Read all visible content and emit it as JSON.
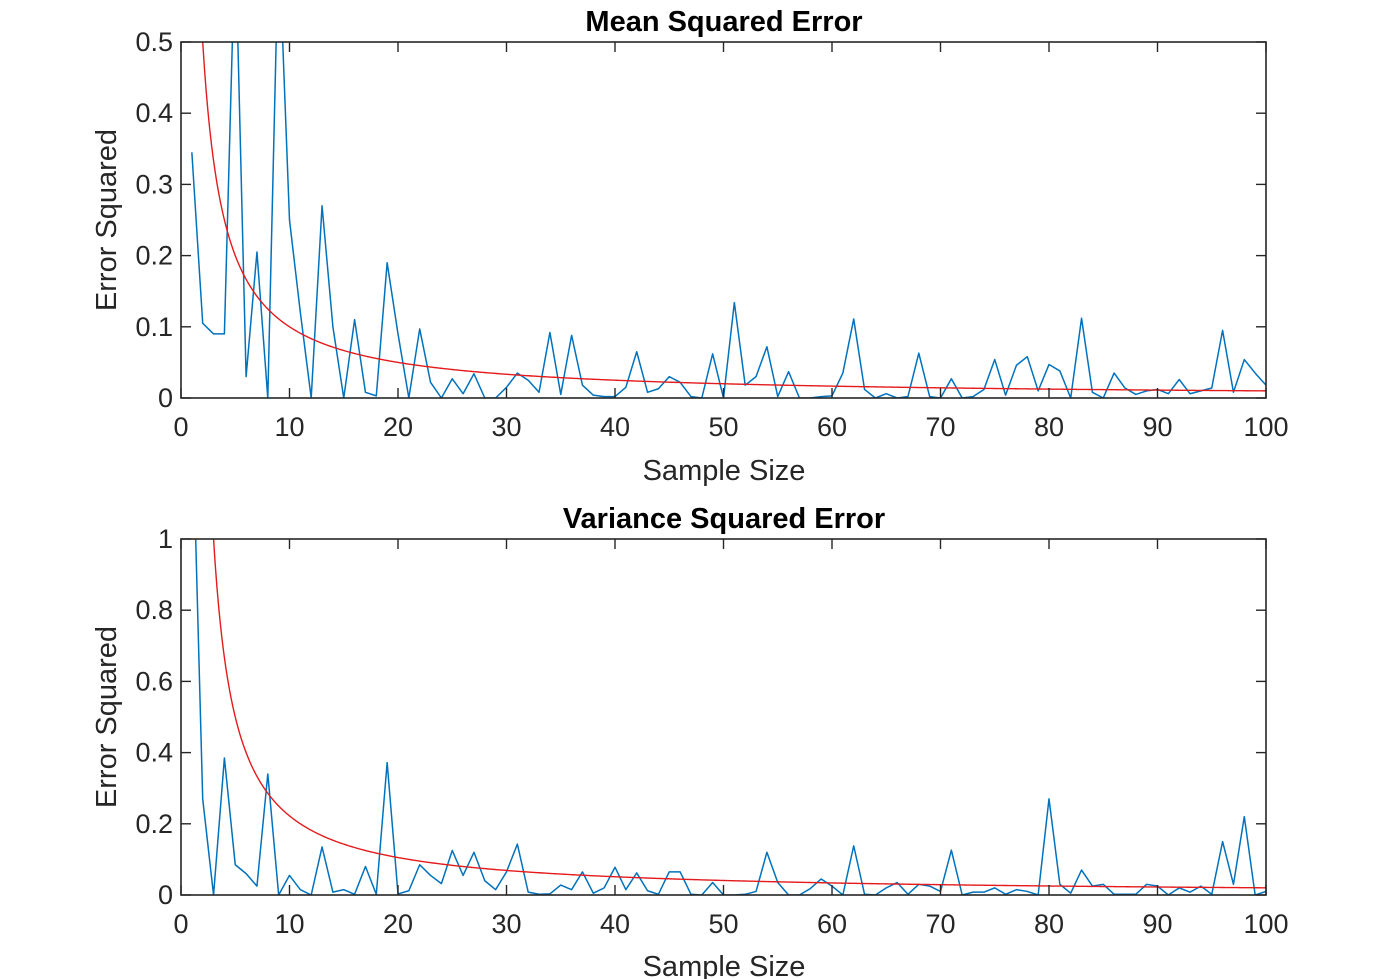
{
  "chart_data": [
    {
      "type": "line",
      "title": "Mean Squared Error",
      "xlabel": "Sample Size",
      "ylabel": "Error Squared",
      "xlim": [
        0,
        100
      ],
      "ylim": [
        0,
        0.5
      ],
      "xticks": [
        "0",
        "10",
        "20",
        "30",
        "40",
        "50",
        "60",
        "70",
        "80",
        "90",
        "100"
      ],
      "yticks": [
        "0",
        "0.1",
        "0.2",
        "0.3",
        "0.4",
        "0.5"
      ],
      "xtick_values": [
        0,
        10,
        20,
        30,
        40,
        50,
        60,
        70,
        80,
        90,
        100
      ],
      "ytick_values": [
        0,
        0.1,
        0.2,
        0.3,
        0.4,
        0.5
      ],
      "grid": false,
      "series": [
        {
          "color": "#0072BD",
          "x": [
            1,
            2,
            3,
            4,
            5,
            6,
            7,
            8,
            9,
            10,
            11,
            12,
            13,
            14,
            15,
            16,
            17,
            18,
            19,
            20,
            21,
            22,
            23,
            24,
            25,
            26,
            27,
            28,
            29,
            30,
            31,
            32,
            33,
            34,
            35,
            36,
            37,
            38,
            39,
            40,
            41,
            42,
            43,
            44,
            45,
            46,
            47,
            48,
            49,
            50,
            51,
            52,
            53,
            54,
            55,
            56,
            57,
            58,
            59,
            60,
            61,
            62,
            63,
            64,
            65,
            66,
            67,
            68,
            69,
            70,
            71,
            72,
            73,
            74,
            75,
            76,
            77,
            78,
            79,
            80,
            81,
            82,
            83,
            84,
            85,
            86,
            87,
            88,
            89,
            90,
            91,
            92,
            93,
            94,
            95,
            96,
            97,
            98,
            99,
            100
          ],
          "values": [
            0.345,
            0.105,
            0.09,
            0.09,
            0.65,
            0.03,
            0.205,
            0.0,
            0.65,
            0.25,
            0.12,
            0.0,
            0.27,
            0.1,
            0.0,
            0.11,
            0.008,
            0.003,
            0.19,
            0.09,
            0.0,
            0.097,
            0.022,
            0.0,
            0.027,
            0.006,
            0.034,
            0.0,
            0.0,
            0.015,
            0.035,
            0.025,
            0.008,
            0.092,
            0.005,
            0.088,
            0.018,
            0.004,
            0.002,
            0.002,
            0.015,
            0.065,
            0.008,
            0.013,
            0.03,
            0.022,
            0.002,
            0.0,
            0.062,
            0.0,
            0.134,
            0.018,
            0.03,
            0.072,
            0.002,
            0.037,
            0.0,
            0.0,
            0.002,
            0.003,
            0.035,
            0.111,
            0.012,
            0.0,
            0.006,
            0.0,
            0.002,
            0.063,
            0.002,
            0.0,
            0.027,
            0.0,
            0.002,
            0.012,
            0.054,
            0.004,
            0.046,
            0.058,
            0.01,
            0.047,
            0.038,
            0.0,
            0.112,
            0.008,
            0.0,
            0.035,
            0.014,
            0.005,
            0.01,
            0.012,
            0.006,
            0.026,
            0.006,
            0.01,
            0.014,
            0.095,
            0.008,
            0.054,
            0.035,
            0.018
          ]
        },
        {
          "color": "#E41A1C",
          "formula": "1/n",
          "x_start": 1,
          "x_end": 100
        }
      ]
    },
    {
      "type": "line",
      "title": "Variance Squared Error",
      "xlabel": "Sample Size",
      "ylabel": "Error Squared",
      "xlim": [
        0,
        100
      ],
      "ylim": [
        0,
        1
      ],
      "xticks": [
        "0",
        "10",
        "20",
        "30",
        "40",
        "50",
        "60",
        "70",
        "80",
        "90",
        "100"
      ],
      "yticks": [
        "0",
        "0.2",
        "0.4",
        "0.6",
        "0.8",
        "1"
      ],
      "xtick_values": [
        0,
        10,
        20,
        30,
        40,
        50,
        60,
        70,
        80,
        90,
        100
      ],
      "ytick_values": [
        0,
        0.2,
        0.4,
        0.6,
        0.8,
        1
      ],
      "grid": false,
      "series": [
        {
          "color": "#0072BD",
          "x": [
            1,
            2,
            3,
            4,
            5,
            6,
            7,
            8,
            9,
            10,
            11,
            12,
            13,
            14,
            15,
            16,
            17,
            18,
            19,
            20,
            21,
            22,
            23,
            24,
            25,
            26,
            27,
            28,
            29,
            30,
            31,
            32,
            33,
            34,
            35,
            36,
            37,
            38,
            39,
            40,
            41,
            42,
            43,
            44,
            45,
            46,
            47,
            48,
            49,
            50,
            51,
            52,
            53,
            54,
            55,
            56,
            57,
            58,
            59,
            60,
            61,
            62,
            63,
            64,
            65,
            66,
            67,
            68,
            69,
            70,
            71,
            72,
            73,
            74,
            75,
            76,
            77,
            78,
            79,
            80,
            81,
            82,
            83,
            84,
            85,
            86,
            87,
            88,
            89,
            90,
            91,
            92,
            93,
            94,
            95,
            96,
            97,
            98,
            99,
            100
          ],
          "values": [
            1.4,
            0.27,
            0.0,
            0.385,
            0.085,
            0.06,
            0.025,
            0.34,
            0.0,
            0.055,
            0.015,
            0.0,
            0.135,
            0.008,
            0.015,
            0.002,
            0.08,
            0.002,
            0.372,
            0.003,
            0.012,
            0.085,
            0.055,
            0.032,
            0.125,
            0.055,
            0.12,
            0.04,
            0.015,
            0.065,
            0.143,
            0.008,
            0.002,
            0.003,
            0.028,
            0.015,
            0.065,
            0.005,
            0.02,
            0.078,
            0.015,
            0.062,
            0.012,
            0.002,
            0.065,
            0.065,
            0.002,
            0.0,
            0.035,
            0.0,
            0.0,
            0.002,
            0.01,
            0.12,
            0.035,
            0.0,
            0.0,
            0.018,
            0.045,
            0.025,
            0.0,
            0.138,
            0.002,
            0.0,
            0.02,
            0.035,
            0.002,
            0.03,
            0.025,
            0.01,
            0.126,
            0.0,
            0.008,
            0.008,
            0.02,
            0.002,
            0.015,
            0.01,
            0.0,
            0.27,
            0.03,
            0.005,
            0.07,
            0.025,
            0.03,
            0.002,
            0.002,
            0.002,
            0.03,
            0.025,
            0.0,
            0.02,
            0.008,
            0.025,
            0.002,
            0.15,
            0.03,
            0.22,
            0.0,
            0.01
          ]
        },
        {
          "color": "#E41A1C",
          "formula": "2/(n-1)",
          "x_start": 1.5,
          "x_end": 100
        }
      ]
    }
  ]
}
